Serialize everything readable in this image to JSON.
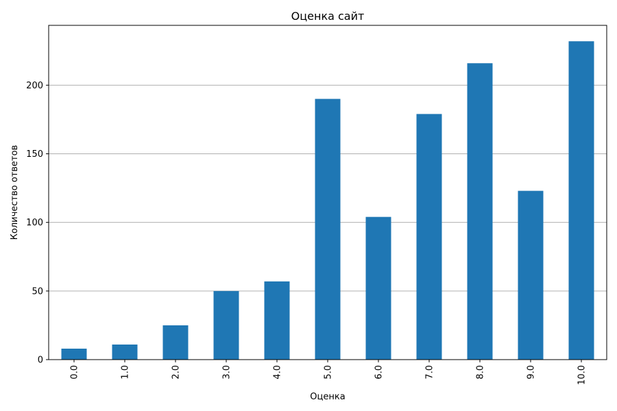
{
  "chart_data": {
    "type": "bar",
    "title": "Оценка сайт",
    "xlabel": "Оценка",
    "ylabel": "Количество ответов",
    "categories": [
      "0.0",
      "1.0",
      "2.0",
      "3.0",
      "4.0",
      "5.0",
      "6.0",
      "7.0",
      "8.0",
      "9.0",
      "10.0"
    ],
    "values": [
      8,
      11,
      25,
      50,
      57,
      190,
      104,
      179,
      216,
      123,
      232
    ],
    "ylim": [
      0,
      243.6
    ],
    "yticks": [
      0,
      50,
      100,
      150,
      200
    ],
    "ytick_labels": [
      "0",
      "50",
      "100",
      "150",
      "200"
    ],
    "grid": {
      "y": true,
      "x": false
    },
    "legend": "none",
    "colors": {
      "bar": "#1f77b4",
      "grid": "#b0b0b0",
      "axis": "#000000"
    }
  }
}
